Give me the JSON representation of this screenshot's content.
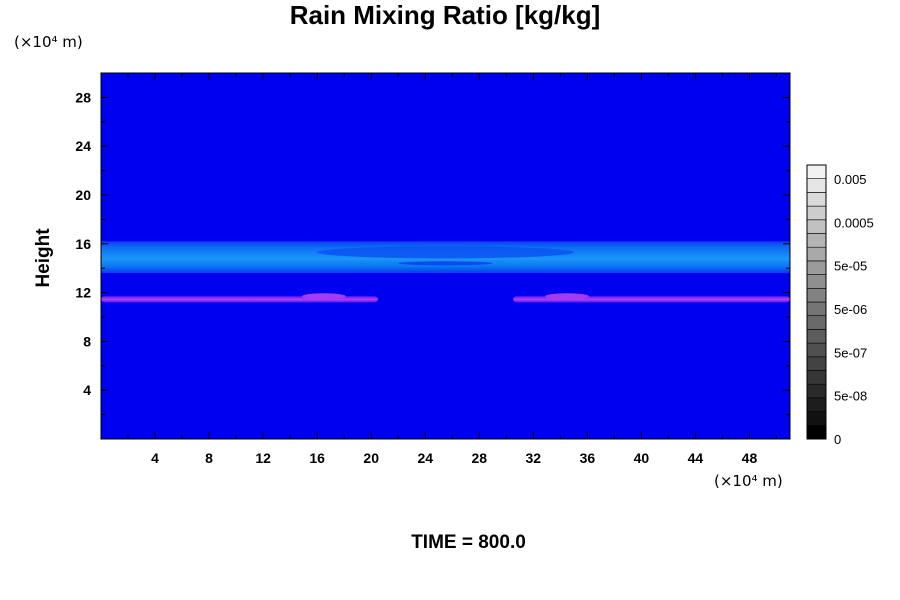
{
  "chart_data": {
    "type": "heatmap",
    "title": "Rain Mixing Ratio [kg/kg]",
    "ylabel": "Height",
    "xlabel": "",
    "x_unit": "(×10⁴ m)",
    "y_unit": "(×10⁴ m)",
    "xlim": [
      0,
      51
    ],
    "ylim": [
      0,
      30
    ],
    "x_ticks": [
      4,
      8,
      12,
      16,
      20,
      24,
      28,
      32,
      36,
      40,
      44,
      48
    ],
    "y_ticks": [
      4,
      8,
      12,
      16,
      20,
      24,
      28
    ],
    "background_color": "#0000f0",
    "bands": [
      {
        "name": "",
        "y_range": [
          13.6,
          16.2
        ],
        "x_range": [
          0,
          51
        ],
        "color": "#0a6cf2"
      },
      {
        "name": "",
        "y_range": [
          11.2,
          11.7
        ],
        "x_range": [
          0,
          20.5
        ],
        "color": "#9a3cf2"
      },
      {
        "name": "",
        "y_range": [
          11.2,
          11.7
        ],
        "x_range": [
          30.5,
          51
        ],
        "color": "#9a3cf2"
      }
    ],
    "colorbar": {
      "labels": [
        "0.005",
        "0.0005",
        "5e-05",
        "5e-06",
        "5e-07",
        "5e-08",
        "0"
      ],
      "colors": [
        "#000000",
        "#111111",
        "#1d1d1d",
        "#2a2a2a",
        "#363636",
        "#434343",
        "#505050",
        "#5c5c5c",
        "#696969",
        "#757575",
        "#828282",
        "#8f8f8f",
        "#9b9b9b",
        "#a8a8a8",
        "#b4b4b4",
        "#c1c1c1",
        "#cdcdcd",
        "#dadada",
        "#e6e6e6",
        "#f2f2f2"
      ]
    },
    "footer": "TIME = 800.0"
  }
}
